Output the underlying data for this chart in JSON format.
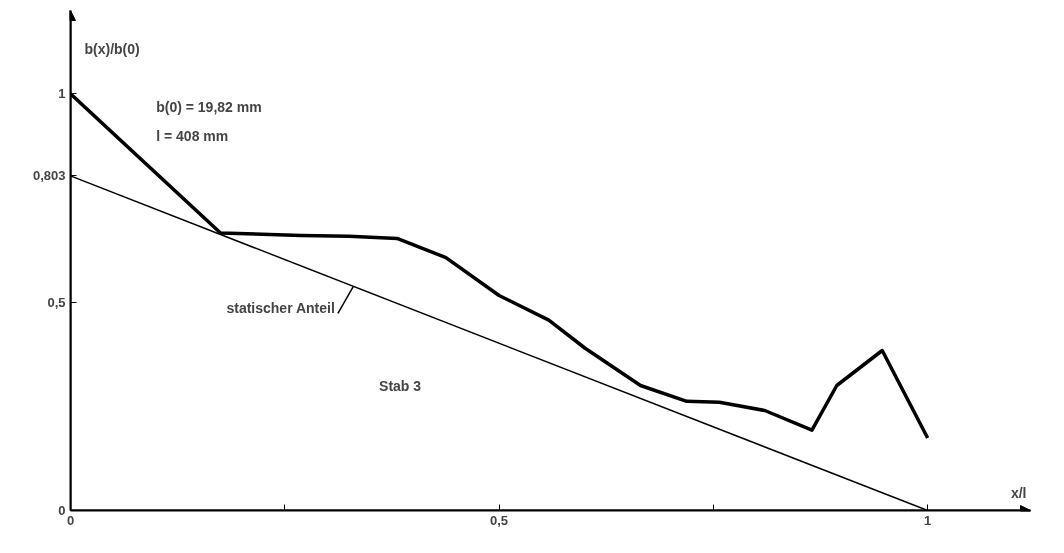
{
  "chart_data": {
    "type": "line",
    "xlabel": "x/l",
    "ylabel": "b(x)/b(0)",
    "xlim": [
      0,
      1.12
    ],
    "ylim": [
      0,
      1.2
    ],
    "xticks": [
      {
        "value": 0,
        "label": "0"
      },
      {
        "value": 0.25,
        "label": null
      },
      {
        "value": 0.5,
        "label": "0,5"
      },
      {
        "value": 0.75,
        "label": null
      },
      {
        "value": 1,
        "label": "1"
      }
    ],
    "yticks": [
      {
        "value": 0,
        "label": "0"
      },
      {
        "value": 0.5,
        "label": "0,5"
      },
      {
        "value": 0.803,
        "label": "0,803"
      },
      {
        "value": 1,
        "label": "1"
      }
    ],
    "grid": false,
    "marker": "none",
    "line_style": "solid",
    "series": [
      {
        "color": "#000000",
        "x": [
          0,
          0.175,
          0.269,
          0.325,
          0.381,
          0.438,
          0.5,
          0.558,
          0.6,
          0.665,
          0.719,
          0.757,
          0.81,
          0.865,
          0.894,
          0.947,
          1
        ],
        "values": [
          1,
          0.666,
          0.66,
          0.658,
          0.653,
          0.607,
          0.516,
          0.457,
          0.39,
          0.3,
          0.262,
          0.26,
          0.24,
          0.193,
          0.3,
          0.384,
          0.174
        ]
      },
      {
        "color": "#000000",
        "x": [
          0,
          1
        ],
        "values": [
          0.803,
          0
        ]
      }
    ],
    "annotations": [
      "b(0) = 19,82 mm",
      "l  = 408 mm",
      "Stab 3",
      {
        "text": "statischer Anteil",
        "x": 0.33,
        "y": 0.538
      }
    ]
  }
}
